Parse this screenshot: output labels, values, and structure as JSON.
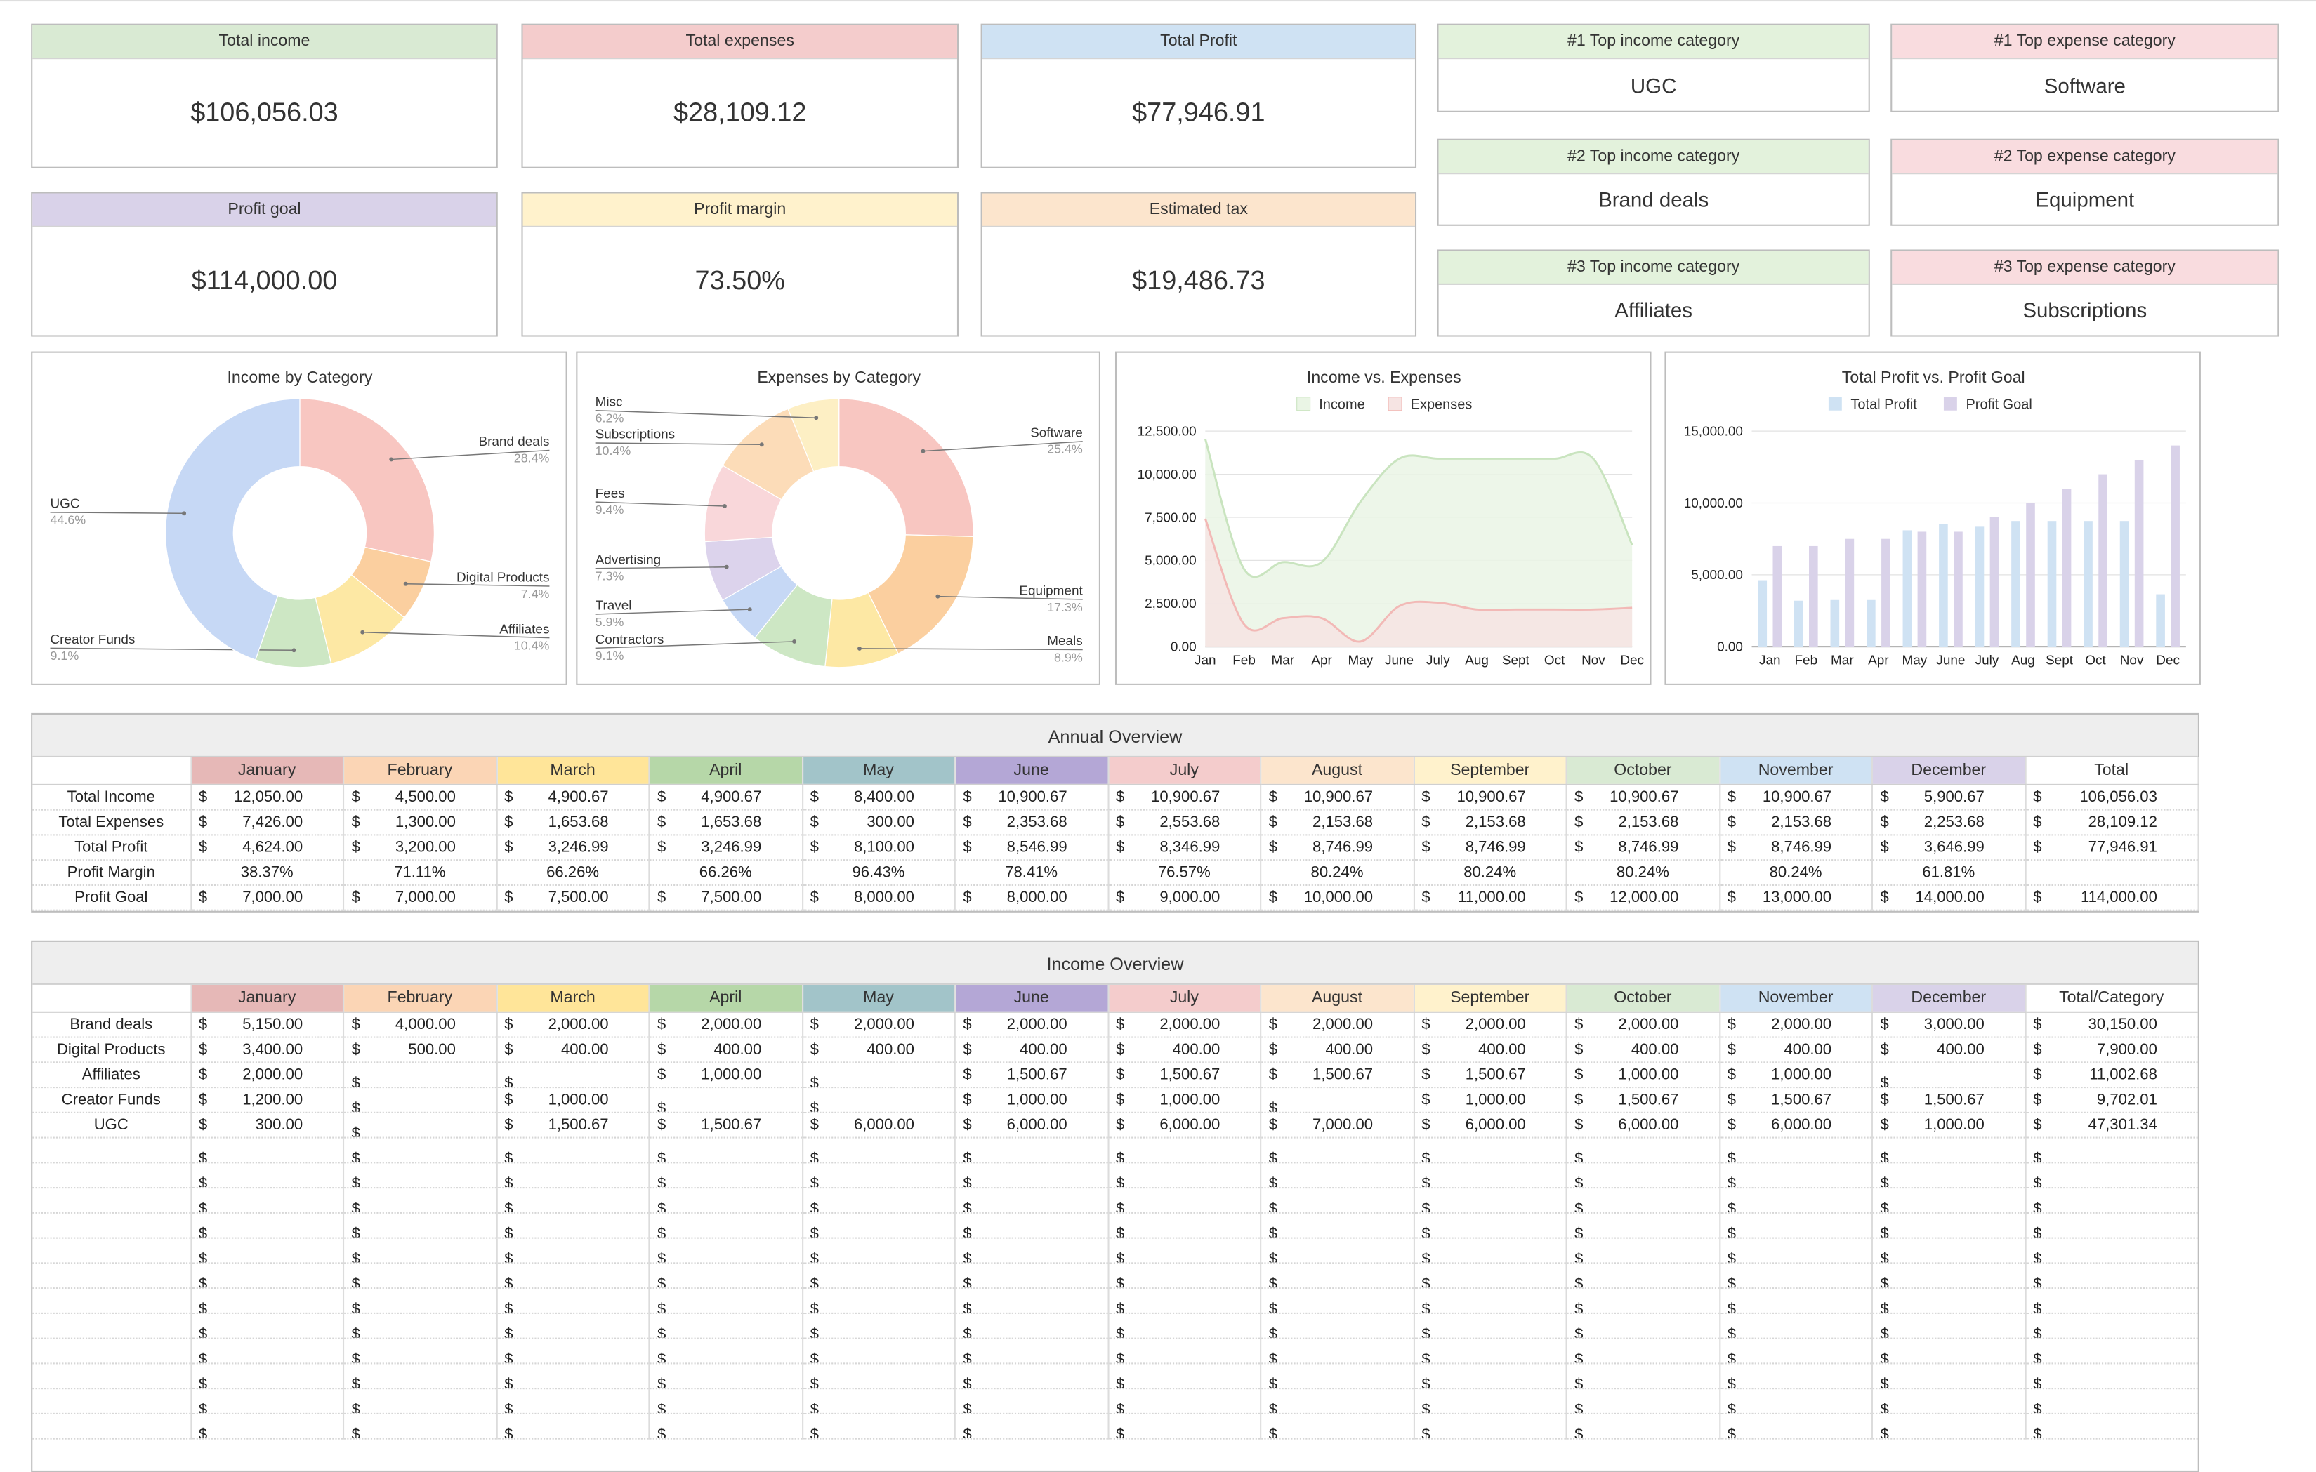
{
  "kpis": [
    {
      "label": "Total income",
      "value": "$106,056.03",
      "color": "#d9ead3"
    },
    {
      "label": "Total expenses",
      "value": "$28,109.12",
      "color": "#f4cccc"
    },
    {
      "label": "Total Profit",
      "value": "$77,946.91",
      "color": "#cfe2f3"
    },
    {
      "label": "Profit goal",
      "value": "$114,000.00",
      "color": "#d9d2e9"
    },
    {
      "label": "Profit margin",
      "value": "73.50%",
      "color": "#fff2cc"
    },
    {
      "label": "Estimated tax",
      "value": "$19,486.73",
      "color": "#fce5cd"
    }
  ],
  "top_categories": [
    {
      "label": "#1 Top income category",
      "value": "UGC",
      "color": "#e3f2dc"
    },
    {
      "label": "#1 Top expense category",
      "value": "Software",
      "color": "#f9dcdf"
    },
    {
      "label": "#2 Top income category",
      "value": "Brand deals",
      "color": "#e3f2dc"
    },
    {
      "label": "#2 Top expense category",
      "value": "Equipment",
      "color": "#f9dcdf"
    },
    {
      "label": "#3 Top income category",
      "value": "Affiliates",
      "color": "#e3f2dc"
    },
    {
      "label": "#3 Top expense category",
      "value": "Subscriptions",
      "color": "#f9dcdf"
    }
  ],
  "chart_data": [
    {
      "type": "pie",
      "title": "Income by Category",
      "donut": true,
      "slices": [
        {
          "label": "Brand deals",
          "value": 28.4,
          "pct": "28.4%",
          "color": "#f8c6c1"
        },
        {
          "label": "Digital Products",
          "value": 7.4,
          "pct": "7.4%",
          "color": "#fbcf9f"
        },
        {
          "label": "Affiliates",
          "value": 10.4,
          "pct": "10.4%",
          "color": "#fde8a4"
        },
        {
          "label": "Creator Funds",
          "value": 9.1,
          "pct": "9.1%",
          "color": "#cde7c4"
        },
        {
          "label": "UGC",
          "value": 44.6,
          "pct": "44.6%",
          "color": "#c6d8f5"
        }
      ]
    },
    {
      "type": "pie",
      "title": "Expenses by Category",
      "donut": true,
      "slices": [
        {
          "label": "Software",
          "value": 25.4,
          "pct": "25.4%",
          "color": "#f8c6c1"
        },
        {
          "label": "Equipment",
          "value": 17.3,
          "pct": "17.3%",
          "color": "#fbcf9f"
        },
        {
          "label": "Meals",
          "value": 8.9,
          "pct": "8.9%",
          "color": "#fde8a4"
        },
        {
          "label": "Contractors",
          "value": 9.1,
          "pct": "9.1%",
          "color": "#cde7c4"
        },
        {
          "label": "Travel",
          "value": 5.9,
          "pct": "5.9%",
          "color": "#c6d8f5"
        },
        {
          "label": "Advertising",
          "value": 7.3,
          "pct": "7.3%",
          "color": "#dcd3ec"
        },
        {
          "label": "Fees",
          "value": 9.4,
          "pct": "9.4%",
          "color": "#f9d7da"
        },
        {
          "label": "Subscriptions",
          "value": 10.4,
          "pct": "10.4%",
          "color": "#fcdcb8"
        },
        {
          "label": "Misc",
          "value": 6.2,
          "pct": "6.2%",
          "color": "#fdefc4"
        }
      ]
    },
    {
      "type": "area",
      "title": "Income vs. Expenses",
      "categories": [
        "Jan",
        "Feb",
        "Mar",
        "Apr",
        "May",
        "June",
        "July",
        "Aug",
        "Sept",
        "Oct",
        "Nov",
        "Dec"
      ],
      "yticks": [
        "0.00",
        "2,500.00",
        "5,000.00",
        "7,500.00",
        "10,000.00",
        "12,500.00"
      ],
      "ylim": [
        0,
        12500
      ],
      "legend": "top",
      "series": [
        {
          "name": "Income",
          "values": [
            12050,
            4500,
            4900.67,
            4900.67,
            8400,
            10900.67,
            10900.67,
            10900.67,
            10900.67,
            10900.67,
            10900.67,
            5900.67
          ],
          "fill": "#eaf5e5",
          "stroke": "#c9e4bf"
        },
        {
          "name": "Expenses",
          "values": [
            7426,
            1300,
            1653.68,
            1653.68,
            300,
            2353.68,
            2553.68,
            2153.68,
            2153.68,
            2153.68,
            2153.68,
            2253.68
          ],
          "fill": "#f6e4e3",
          "stroke": "#f2b9b6"
        }
      ]
    },
    {
      "type": "bar",
      "title": "Total Profit vs. Profit Goal",
      "categories": [
        "Jan",
        "Feb",
        "Mar",
        "Apr",
        "May",
        "June",
        "July",
        "Aug",
        "Sept",
        "Oct",
        "Nov",
        "Dec"
      ],
      "yticks": [
        "0.00",
        "5,000.00",
        "10,000.00",
        "15,000.00"
      ],
      "ylim": [
        0,
        15000
      ],
      "legend": "top",
      "series": [
        {
          "name": "Total Profit",
          "values": [
            4624,
            3200,
            3246.99,
            3246.99,
            8100,
            8546.99,
            8346.99,
            8746.99,
            8746.99,
            8746.99,
            8746.99,
            3646.99
          ],
          "color": "#cfe2f3"
        },
        {
          "name": "Profit Goal",
          "values": [
            7000,
            7000,
            7500,
            7500,
            8000,
            8000,
            9000,
            10000,
            11000,
            12000,
            13000,
            14000
          ],
          "color": "#d9d2e9"
        }
      ]
    }
  ],
  "annual": {
    "title": "Annual Overview",
    "total_header": "Total",
    "months": [
      {
        "name": "January",
        "color": "#e6b8b7"
      },
      {
        "name": "February",
        "color": "#fbd5b5"
      },
      {
        "name": "March",
        "color": "#ffe599"
      },
      {
        "name": "April",
        "color": "#b6d7a8"
      },
      {
        "name": "May",
        "color": "#a2c4c9"
      },
      {
        "name": "June",
        "color": "#b4a7d6"
      },
      {
        "name": "July",
        "color": "#f4cccc"
      },
      {
        "name": "August",
        "color": "#fce5cd"
      },
      {
        "name": "September",
        "color": "#fff2cc"
      },
      {
        "name": "October",
        "color": "#d9ead3"
      },
      {
        "name": "November",
        "color": "#cfe2f3"
      },
      {
        "name": "December",
        "color": "#d9d2e9"
      }
    ],
    "rows": [
      {
        "label": "Total Income",
        "currency": true,
        "cells": [
          "12,050.00",
          "4,500.00",
          "4,900.67",
          "4,900.67",
          "8,400.00",
          "10,900.67",
          "10,900.67",
          "10,900.67",
          "10,900.67",
          "10,900.67",
          "10,900.67",
          "5,900.67"
        ],
        "total": "106,056.03"
      },
      {
        "label": "Total Expenses",
        "currency": true,
        "cells": [
          "7,426.00",
          "1,300.00",
          "1,653.68",
          "1,653.68",
          "300.00",
          "2,353.68",
          "2,553.68",
          "2,153.68",
          "2,153.68",
          "2,153.68",
          "2,153.68",
          "2,253.68"
        ],
        "total": "28,109.12"
      },
      {
        "label": "Total Profit",
        "currency": true,
        "cells": [
          "4,624.00",
          "3,200.00",
          "3,246.99",
          "3,246.99",
          "8,100.00",
          "8,546.99",
          "8,346.99",
          "8,746.99",
          "8,746.99",
          "8,746.99",
          "8,746.99",
          "3,646.99"
        ],
        "total": "77,946.91"
      },
      {
        "label": "Profit Margin",
        "currency": false,
        "cells": [
          "38.37%",
          "71.11%",
          "66.26%",
          "66.26%",
          "96.43%",
          "78.41%",
          "76.57%",
          "80.24%",
          "80.24%",
          "80.24%",
          "80.24%",
          "61.81%"
        ],
        "total": ""
      },
      {
        "label": "Profit Goal",
        "currency": true,
        "cells": [
          "7,000.00",
          "7,000.00",
          "7,500.00",
          "7,500.00",
          "8,000.00",
          "8,000.00",
          "9,000.00",
          "10,000.00",
          "11,000.00",
          "12,000.00",
          "13,000.00",
          "14,000.00"
        ],
        "total": "114,000.00"
      }
    ]
  },
  "income": {
    "title": "Income Overview",
    "total_header": "Total/Category",
    "currency_symbol": "$",
    "rows": [
      {
        "label": "Brand deals",
        "cells": [
          "5,150.00",
          "4,000.00",
          "2,000.00",
          "2,000.00",
          "2,000.00",
          "2,000.00",
          "2,000.00",
          "2,000.00",
          "2,000.00",
          "2,000.00",
          "2,000.00",
          "3,000.00"
        ],
        "total": "30,150.00"
      },
      {
        "label": "Digital Products",
        "cells": [
          "3,400.00",
          "500.00",
          "400.00",
          "400.00",
          "400.00",
          "400.00",
          "400.00",
          "400.00",
          "400.00",
          "400.00",
          "400.00",
          "400.00"
        ],
        "total": "7,900.00"
      },
      {
        "label": "Affiliates",
        "cells": [
          "2,000.00",
          "",
          "",
          "1,000.00",
          "",
          "1,500.67",
          "1,500.67",
          "1,500.67",
          "1,500.67",
          "1,000.00",
          "1,000.00",
          ""
        ],
        "total": "11,002.68"
      },
      {
        "label": "Creator Funds",
        "cells": [
          "1,200.00",
          "",
          "1,000.00",
          "",
          "",
          "1,000.00",
          "1,000.00",
          "",
          "1,000.00",
          "1,500.67",
          "1,500.67",
          "1,500.67"
        ],
        "total": "9,702.01"
      },
      {
        "label": "UGC",
        "cells": [
          "300.00",
          "",
          "1,500.67",
          "1,500.67",
          "6,000.00",
          "6,000.00",
          "6,000.00",
          "7,000.00",
          "6,000.00",
          "6,000.00",
          "6,000.00",
          "1,000.00"
        ],
        "total": "47,301.34"
      }
    ],
    "empty_rows": 12
  }
}
